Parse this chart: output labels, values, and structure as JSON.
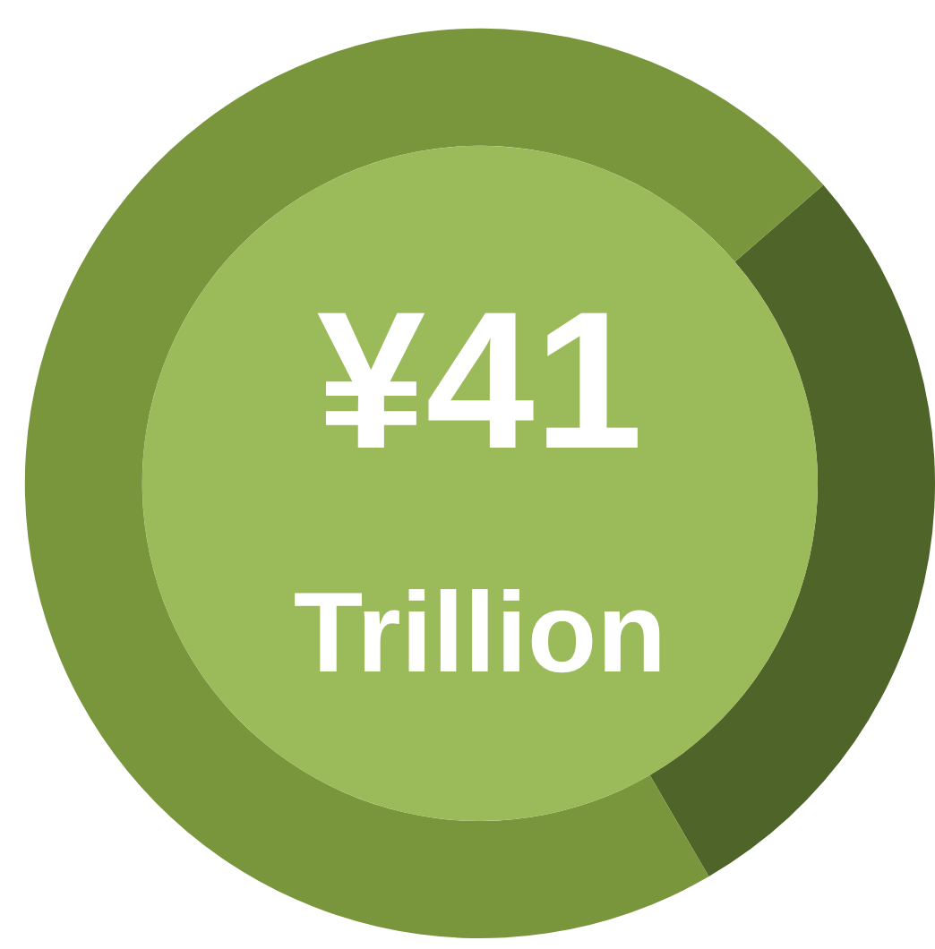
{
  "chart_data": {
    "type": "donut",
    "categories": [
      null,
      null
    ],
    "values": [
      28,
      72
    ],
    "colors": [
      "#4f6428",
      "#7a963c"
    ],
    "legend": false,
    "annotations": [
      "¥41",
      "Trillion"
    ]
  }
}
